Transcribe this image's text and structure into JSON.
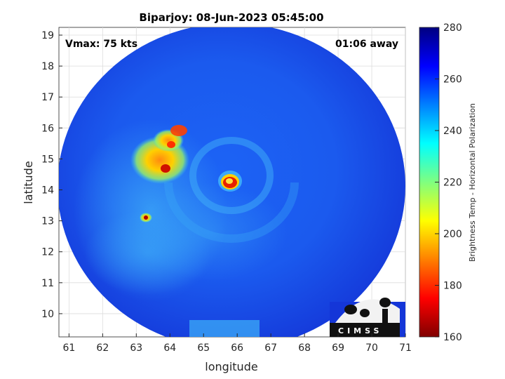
{
  "title": "Biparjoy: 08-Jun-2023 05:45:00",
  "annotations": {
    "vmax": "Vmax: 75 kts",
    "time_away": "01:06 away"
  },
  "axes": {
    "xlabel": "longitude",
    "ylabel": "latitude",
    "xticks": [
      61,
      62,
      63,
      64,
      65,
      66,
      67,
      68,
      69,
      70,
      71
    ],
    "yticks": [
      10,
      11,
      12,
      13,
      14,
      15,
      16,
      17,
      18,
      19
    ],
    "xlim": [
      60.7,
      71
    ],
    "ylim": [
      9.25,
      19.25
    ],
    "grid": true
  },
  "colorbar": {
    "label": "Brightness Temp - Horizontal Polarization",
    "ticks": [
      160,
      180,
      200,
      220,
      240,
      260,
      280
    ],
    "range": [
      160,
      280
    ],
    "colormap": "jet"
  },
  "storm": {
    "name": "Biparjoy",
    "center_lon": 65.8,
    "center_lat": 14.2,
    "eye_min_temp": 175
  },
  "logo": {
    "text": "CIMSS"
  },
  "colors": {
    "grid": "#dcdcdc",
    "axis": "#262626",
    "background_field": "#2050f0"
  }
}
